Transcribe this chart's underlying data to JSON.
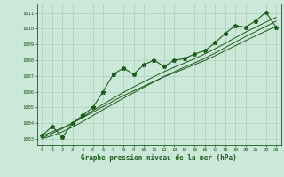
{
  "title": "Graphe pression niveau de la mer (hPa)",
  "bg_color": "#cce8d8",
  "grid_color": "#aaccbc",
  "line_color": "#1a5c1a",
  "x_labels": [
    "0",
    "1",
    "2",
    "3",
    "4",
    "5",
    "6",
    "7",
    "8",
    "9",
    "10",
    "11",
    "12",
    "13",
    "14",
    "15",
    "16",
    "17",
    "18",
    "19",
    "20",
    "21",
    "22",
    "23"
  ],
  "y_ticks": [
    1003,
    1004,
    1005,
    1006,
    1007,
    1008,
    1009,
    1010,
    1011
  ],
  "ylim": [
    1002.6,
    1011.6
  ],
  "xlim": [
    -0.5,
    23.5
  ],
  "pressure_data": [
    1003.2,
    1003.8,
    1003.1,
    1004.0,
    1004.5,
    1005.0,
    1006.0,
    1007.1,
    1007.5,
    1007.1,
    1007.7,
    1008.0,
    1007.6,
    1008.0,
    1008.1,
    1008.4,
    1008.6,
    1009.1,
    1009.7,
    1010.2,
    1010.1,
    1010.5,
    1011.05,
    1010.1
  ],
  "smooth_line1": [
    1003.2,
    1003.45,
    1003.7,
    1004.0,
    1004.35,
    1004.7,
    1005.05,
    1005.4,
    1005.75,
    1006.05,
    1006.35,
    1006.65,
    1006.95,
    1007.2,
    1007.45,
    1007.72,
    1007.98,
    1008.28,
    1008.6,
    1008.92,
    1009.24,
    1009.55,
    1009.85,
    1010.15
  ],
  "smooth_line2": [
    1003.05,
    1003.35,
    1003.65,
    1004.0,
    1004.4,
    1004.8,
    1005.2,
    1005.58,
    1005.95,
    1006.3,
    1006.63,
    1006.95,
    1007.27,
    1007.55,
    1007.82,
    1008.1,
    1008.4,
    1008.72,
    1009.07,
    1009.43,
    1009.78,
    1010.1,
    1010.42,
    1010.72
  ],
  "smooth_line3": [
    1003.0,
    1003.2,
    1003.45,
    1003.75,
    1004.1,
    1004.48,
    1004.86,
    1005.22,
    1005.58,
    1005.93,
    1006.28,
    1006.62,
    1006.96,
    1007.26,
    1007.56,
    1007.83,
    1008.12,
    1008.45,
    1008.8,
    1009.15,
    1009.5,
    1009.82,
    1010.15,
    1010.48
  ]
}
